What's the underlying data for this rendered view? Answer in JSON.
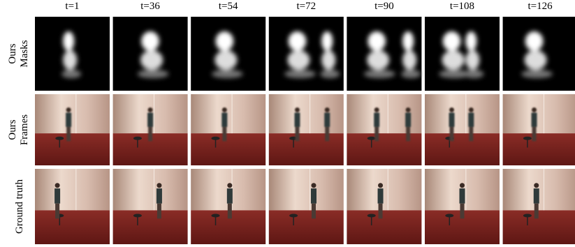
{
  "columns": [
    "t=1",
    "t=36",
    "t=54",
    "t=72",
    "t=90",
    "t=108",
    "t=126"
  ],
  "rows": [
    {
      "lines": [
        "Ours",
        "Masks"
      ]
    },
    {
      "lines": [
        "Ours",
        "Frames"
      ]
    },
    {
      "lines": [
        "Ground truth"
      ]
    }
  ]
}
